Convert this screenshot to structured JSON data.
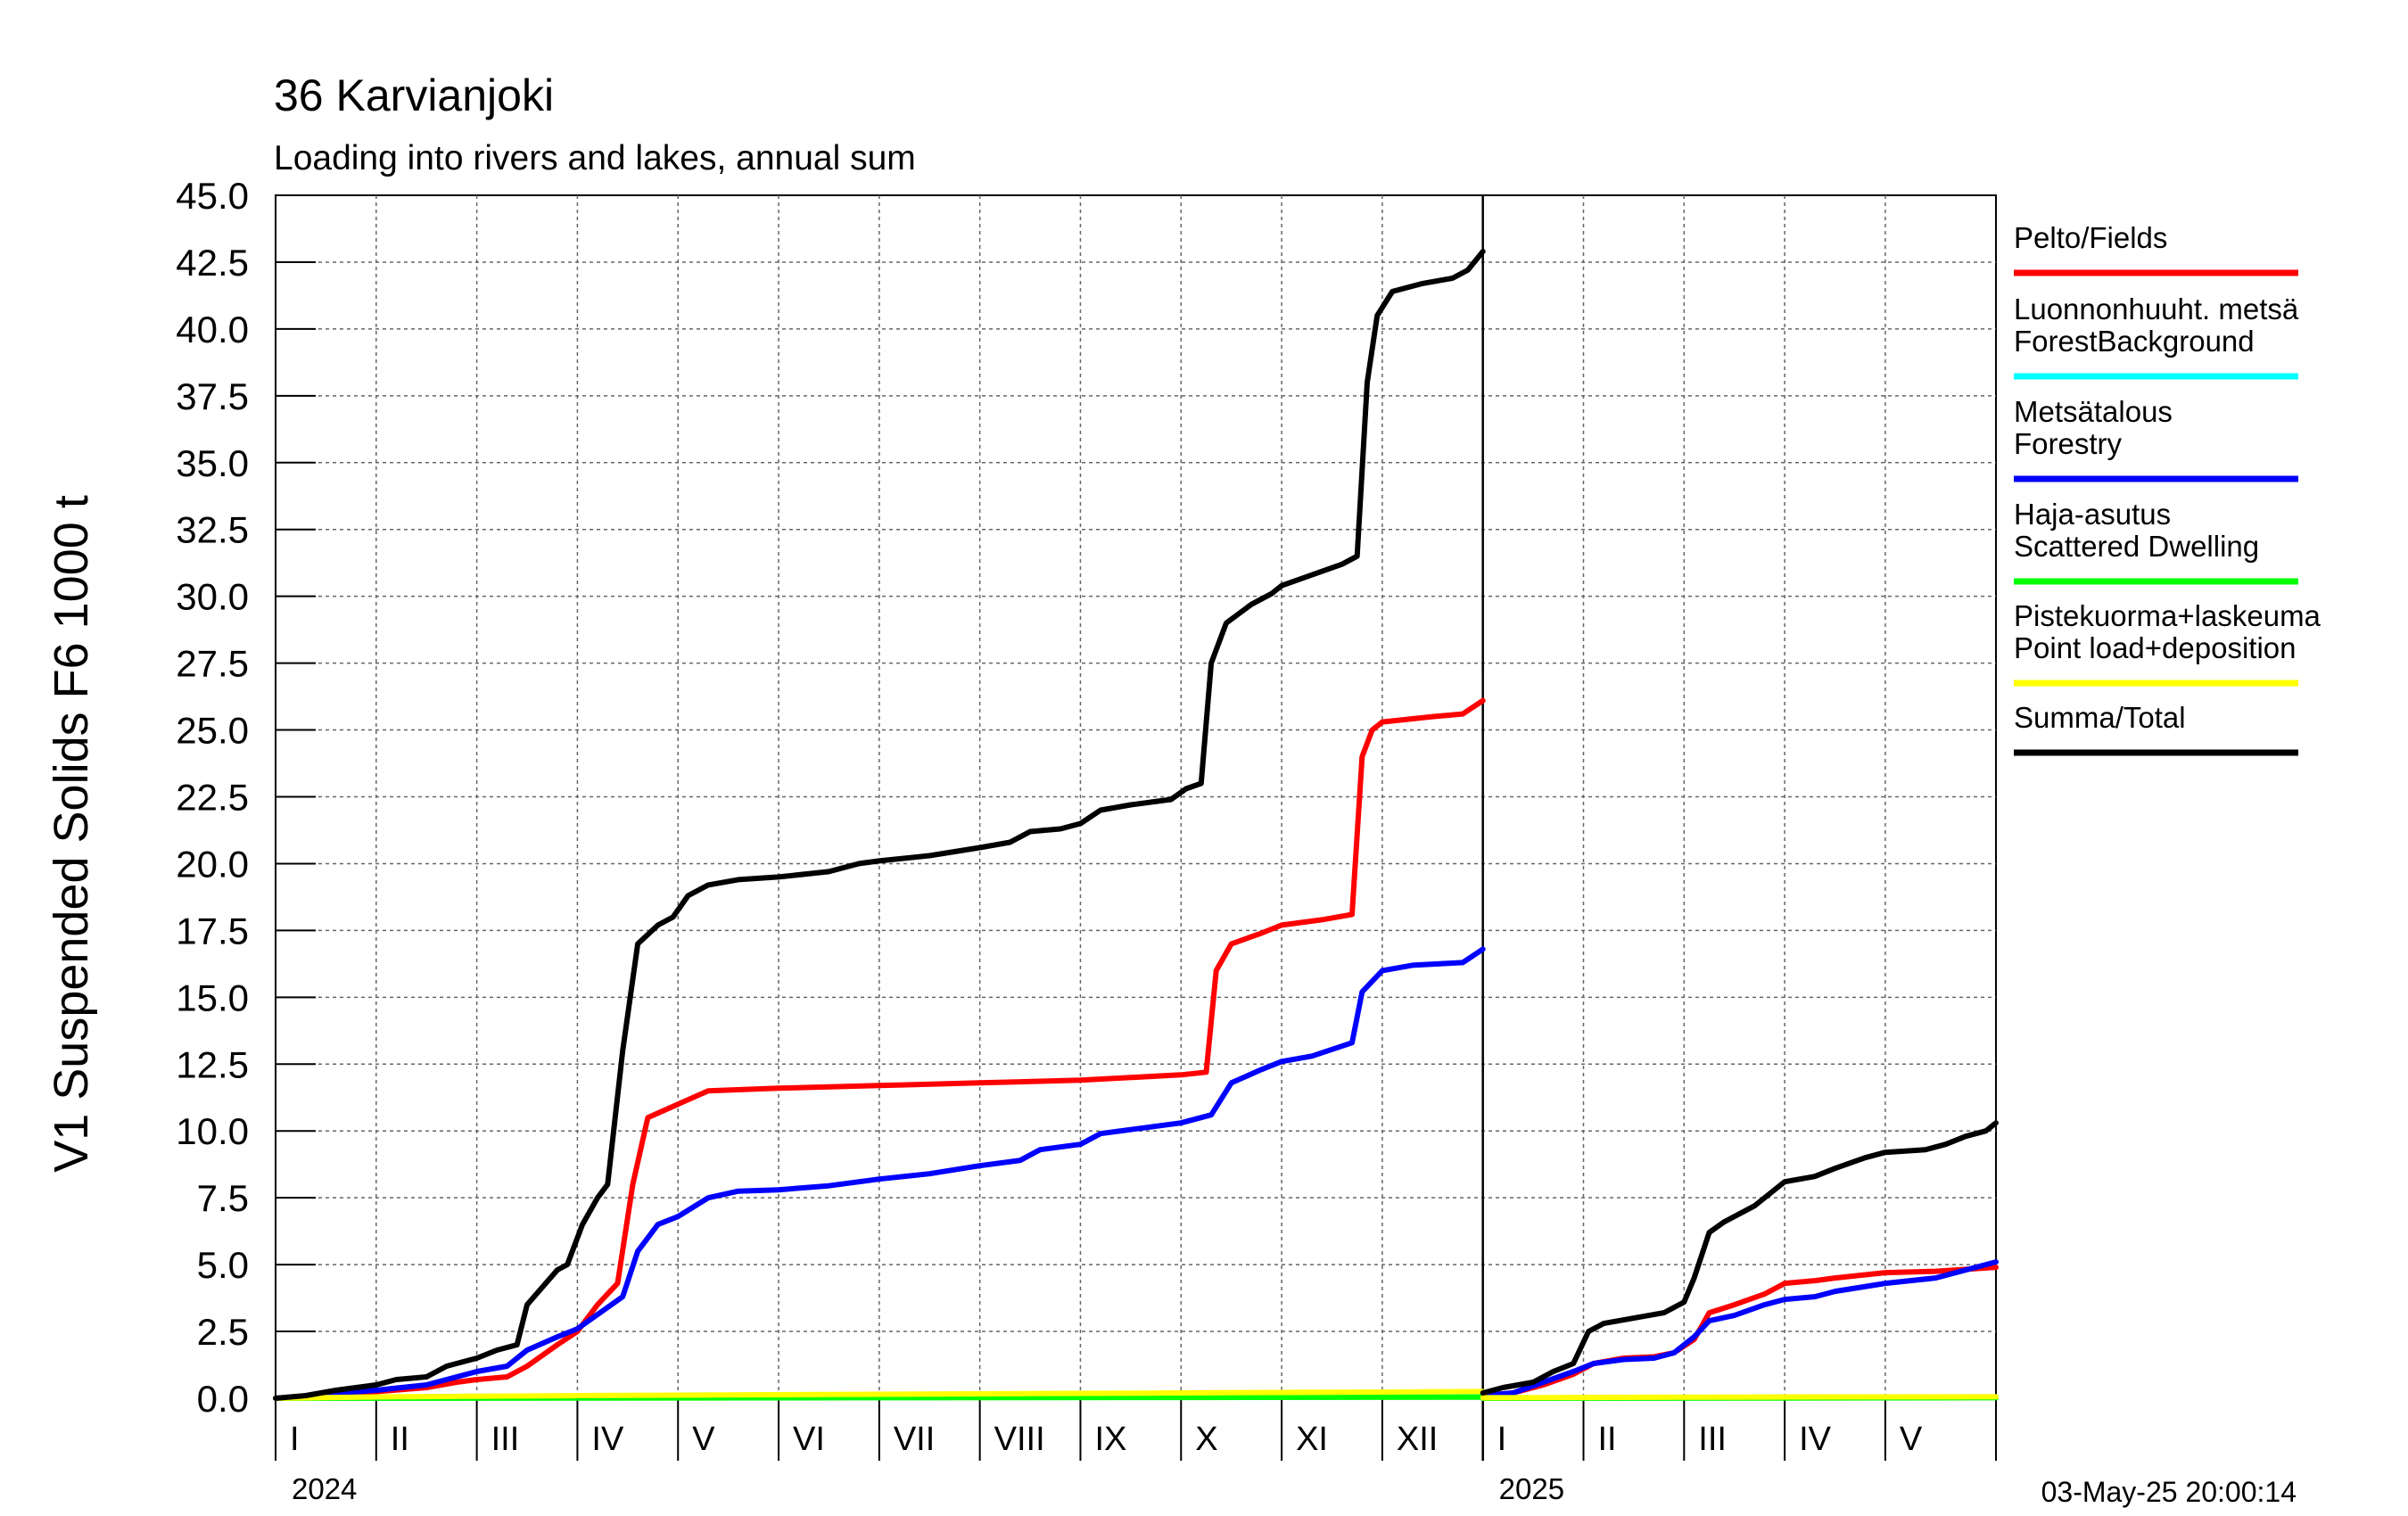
{
  "chart_data": {
    "type": "line",
    "title": "36 Karvianjoki",
    "subtitle": "Loading into rivers and lakes, annual sum",
    "ylabel": "V1 Suspended Solids F6 1000 t",
    "ylim": [
      0,
      45
    ],
    "yticks": [
      "0.0",
      "2.5",
      "5.0",
      "7.5",
      "10.0",
      "12.5",
      "15.0",
      "17.5",
      "20.0",
      "22.5",
      "25.0",
      "27.5",
      "30.0",
      "32.5",
      "35.0",
      "37.5",
      "40.0",
      "42.5",
      "45.0"
    ],
    "xlim": [
      0,
      17.1
    ],
    "grid": true,
    "legend_position": "right",
    "month_labels": [
      {
        "label": "I",
        "x": 0
      },
      {
        "label": "II",
        "x": 1
      },
      {
        "label": "III",
        "x": 2
      },
      {
        "label": "IV",
        "x": 3
      },
      {
        "label": "V",
        "x": 4
      },
      {
        "label": "VI",
        "x": 5
      },
      {
        "label": "VII",
        "x": 6
      },
      {
        "label": "VIII",
        "x": 7
      },
      {
        "label": "IX",
        "x": 8
      },
      {
        "label": "X",
        "x": 9
      },
      {
        "label": "XI",
        "x": 10
      },
      {
        "label": "XII",
        "x": 11
      },
      {
        "label": "I",
        "x": 12
      },
      {
        "label": "II",
        "x": 13
      },
      {
        "label": "III",
        "x": 14
      },
      {
        "label": "IV",
        "x": 15
      },
      {
        "label": "V",
        "x": 16
      }
    ],
    "year_labels": [
      {
        "label": "2024",
        "x": 0
      },
      {
        "label": "2025",
        "x": 12
      }
    ],
    "year_boundary": 12,
    "timestamp": "03-May-25 20:00:14",
    "series": [
      {
        "name": "Pelto/Fields",
        "color": "#ff0000",
        "segments": [
          [
            [
              0,
              0
            ],
            [
              0.5,
              0.1
            ],
            [
              1,
              0.25
            ],
            [
              1.5,
              0.4
            ],
            [
              1.8,
              0.6
            ],
            [
              2,
              0.7
            ],
            [
              2.3,
              0.8
            ],
            [
              2.5,
              1.2
            ],
            [
              2.8,
              2.0
            ],
            [
              3,
              2.5
            ],
            [
              3.2,
              3.5
            ],
            [
              3.4,
              4.3
            ],
            [
              3.55,
              8.0
            ],
            [
              3.7,
              10.5
            ],
            [
              4,
              11.0
            ],
            [
              4.3,
              11.5
            ],
            [
              5,
              11.6
            ],
            [
              6,
              11.7
            ],
            [
              7,
              11.8
            ],
            [
              8,
              11.9
            ],
            [
              8.5,
              12.0
            ],
            [
              9,
              12.1
            ],
            [
              9.25,
              12.2
            ],
            [
              9.35,
              16.0
            ],
            [
              9.5,
              17.0
            ],
            [
              9.8,
              17.4
            ],
            [
              10,
              17.7
            ],
            [
              10.4,
              17.9
            ],
            [
              10.7,
              18.1
            ],
            [
              10.8,
              24.0
            ],
            [
              10.9,
              25.0
            ],
            [
              11,
              25.3
            ],
            [
              11.5,
              25.5
            ],
            [
              11.8,
              25.6
            ],
            [
              12,
              26.1
            ]
          ],
          [
            [
              12,
              0.1
            ],
            [
              12.3,
              0.2
            ],
            [
              12.6,
              0.5
            ],
            [
              12.9,
              0.9
            ],
            [
              13.1,
              1.3
            ],
            [
              13.4,
              1.5
            ],
            [
              13.7,
              1.55
            ],
            [
              13.9,
              1.7
            ],
            [
              14.1,
              2.2
            ],
            [
              14.25,
              3.2
            ],
            [
              14.5,
              3.5
            ],
            [
              14.8,
              3.9
            ],
            [
              15,
              4.3
            ],
            [
              15.3,
              4.4
            ],
            [
              15.5,
              4.5
            ],
            [
              16,
              4.7
            ],
            [
              16.5,
              4.75
            ],
            [
              17.1,
              4.9
            ]
          ]
        ]
      },
      {
        "name": "Luonnonhuuht. metsä ForestBackground",
        "color": "#00ffff",
        "segments": [
          [
            [
              0,
              0
            ],
            [
              3,
              0.03
            ],
            [
              6,
              0.06
            ],
            [
              9,
              0.1
            ],
            [
              12,
              0.12
            ]
          ],
          [
            [
              12,
              0
            ],
            [
              15,
              0.02
            ],
            [
              17.1,
              0.04
            ]
          ]
        ]
      },
      {
        "name": "Metsätalous Forestry",
        "color": "#0000ff",
        "segments": [
          [
            [
              0,
              0
            ],
            [
              0.5,
              0.15
            ],
            [
              1,
              0.3
            ],
            [
              1.5,
              0.5
            ],
            [
              1.8,
              0.8
            ],
            [
              2,
              1.0
            ],
            [
              2.3,
              1.2
            ],
            [
              2.5,
              1.8
            ],
            [
              2.8,
              2.3
            ],
            [
              3,
              2.6
            ],
            [
              3.3,
              3.4
            ],
            [
              3.45,
              3.8
            ],
            [
              3.6,
              5.5
            ],
            [
              3.8,
              6.5
            ],
            [
              4,
              6.8
            ],
            [
              4.3,
              7.5
            ],
            [
              4.6,
              7.75
            ],
            [
              5,
              7.8
            ],
            [
              5.5,
              7.95
            ],
            [
              6,
              8.2
            ],
            [
              6.5,
              8.4
            ],
            [
              7,
              8.7
            ],
            [
              7.4,
              8.9
            ],
            [
              7.6,
              9.3
            ],
            [
              8,
              9.5
            ],
            [
              8.2,
              9.9
            ],
            [
              8.6,
              10.1
            ],
            [
              9,
              10.3
            ],
            [
              9.3,
              10.6
            ],
            [
              9.5,
              11.8
            ],
            [
              9.8,
              12.3
            ],
            [
              10,
              12.6
            ],
            [
              10.3,
              12.8
            ],
            [
              10.7,
              13.3
            ],
            [
              10.8,
              15.2
            ],
            [
              11,
              16.0
            ],
            [
              11.3,
              16.2
            ],
            [
              11.8,
              16.3
            ],
            [
              12,
              16.8
            ]
          ],
          [
            [
              12,
              0.1
            ],
            [
              12.3,
              0.2
            ],
            [
              12.6,
              0.6
            ],
            [
              12.9,
              1.0
            ],
            [
              13.1,
              1.3
            ],
            [
              13.4,
              1.45
            ],
            [
              13.7,
              1.5
            ],
            [
              13.9,
              1.7
            ],
            [
              14.1,
              2.3
            ],
            [
              14.25,
              2.9
            ],
            [
              14.5,
              3.1
            ],
            [
              14.8,
              3.5
            ],
            [
              15,
              3.7
            ],
            [
              15.3,
              3.8
            ],
            [
              15.5,
              4.0
            ],
            [
              16,
              4.3
            ],
            [
              16.5,
              4.5
            ],
            [
              17.1,
              5.1
            ]
          ]
        ]
      },
      {
        "name": "Haja-asutus Scattered Dwelling",
        "color": "#00ff00",
        "segments": [
          [
            [
              0,
              0
            ],
            [
              3,
              0.01
            ],
            [
              6,
              0.02
            ],
            [
              9,
              0.03
            ],
            [
              12,
              0.04
            ]
          ],
          [
            [
              12,
              0
            ],
            [
              15,
              0.01
            ],
            [
              17.1,
              0.02
            ]
          ]
        ]
      },
      {
        "name": "Pistekuorma+laskeuma Point load+deposition",
        "color": "#ffff00",
        "segments": [
          [
            [
              0,
              0
            ],
            [
              1,
              0.05
            ],
            [
              3,
              0.1
            ],
            [
              6,
              0.15
            ],
            [
              9,
              0.2
            ],
            [
              12,
              0.25
            ]
          ],
          [
            [
              12,
              0.02
            ],
            [
              14,
              0.04
            ],
            [
              17.1,
              0.06
            ]
          ]
        ]
      },
      {
        "name": "Summa/Total",
        "color": "#000000",
        "segments": [
          [
            [
              0,
              0
            ],
            [
              0.3,
              0.1
            ],
            [
              0.6,
              0.3
            ],
            [
              1,
              0.5
            ],
            [
              1.2,
              0.7
            ],
            [
              1.5,
              0.8
            ],
            [
              1.7,
              1.2
            ],
            [
              2,
              1.5
            ],
            [
              2.2,
              1.8
            ],
            [
              2.4,
              2.0
            ],
            [
              2.5,
              3.5
            ],
            [
              2.8,
              4.8
            ],
            [
              2.9,
              5.0
            ],
            [
              3.05,
              6.5
            ],
            [
              3.2,
              7.5
            ],
            [
              3.3,
              8.0
            ],
            [
              3.45,
              13.0
            ],
            [
              3.6,
              17.0
            ],
            [
              3.8,
              17.7
            ],
            [
              3.95,
              18.0
            ],
            [
              4.1,
              18.8
            ],
            [
              4.3,
              19.2
            ],
            [
              4.6,
              19.4
            ],
            [
              5,
              19.5
            ],
            [
              5.5,
              19.7
            ],
            [
              5.8,
              20.0
            ],
            [
              6,
              20.1
            ],
            [
              6.5,
              20.3
            ],
            [
              7,
              20.6
            ],
            [
              7.3,
              20.8
            ],
            [
              7.5,
              21.2
            ],
            [
              7.8,
              21.3
            ],
            [
              8,
              21.5
            ],
            [
              8.2,
              22.0
            ],
            [
              8.5,
              22.2
            ],
            [
              8.9,
              22.4
            ],
            [
              9.05,
              22.8
            ],
            [
              9.2,
              23.0
            ],
            [
              9.3,
              27.5
            ],
            [
              9.45,
              29.0
            ],
            [
              9.7,
              29.7
            ],
            [
              9.9,
              30.1
            ],
            [
              10,
              30.4
            ],
            [
              10.3,
              30.8
            ],
            [
              10.6,
              31.2
            ],
            [
              10.75,
              31.5
            ],
            [
              10.85,
              38.0
            ],
            [
              10.95,
              40.5
            ],
            [
              11.1,
              41.4
            ],
            [
              11.4,
              41.7
            ],
            [
              11.7,
              41.9
            ],
            [
              11.85,
              42.2
            ],
            [
              12,
              42.9
            ]
          ],
          [
            [
              12,
              0.2
            ],
            [
              12.2,
              0.4
            ],
            [
              12.5,
              0.6
            ],
            [
              12.7,
              1.0
            ],
            [
              12.9,
              1.3
            ],
            [
              13.05,
              2.5
            ],
            [
              13.2,
              2.8
            ],
            [
              13.5,
              3.0
            ],
            [
              13.8,
              3.2
            ],
            [
              14,
              3.6
            ],
            [
              14.1,
              4.5
            ],
            [
              14.25,
              6.2
            ],
            [
              14.4,
              6.6
            ],
            [
              14.7,
              7.2
            ],
            [
              14.9,
              7.8
            ],
            [
              15,
              8.1
            ],
            [
              15.3,
              8.3
            ],
            [
              15.5,
              8.6
            ],
            [
              15.8,
              9.0
            ],
            [
              16,
              9.2
            ],
            [
              16.4,
              9.3
            ],
            [
              16.6,
              9.5
            ],
            [
              16.8,
              9.8
            ],
            [
              17.0,
              10.0
            ],
            [
              17.1,
              10.3
            ]
          ]
        ]
      }
    ]
  }
}
